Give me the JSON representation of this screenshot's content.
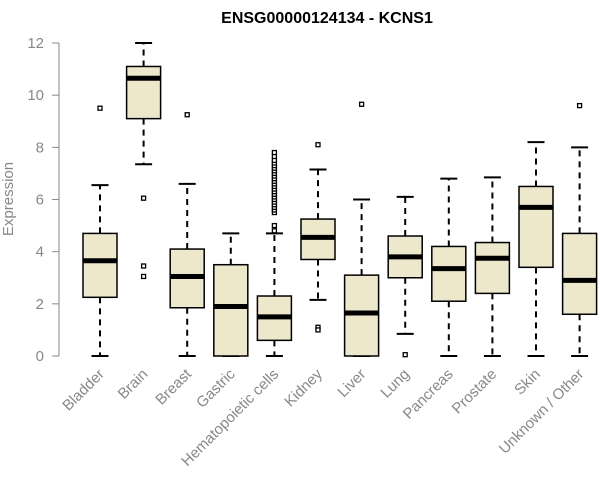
{
  "chart_data": {
    "type": "boxplot",
    "title": "ENSG00000124134 - KCNS1",
    "xlabel": "",
    "ylabel": "Expression",
    "ylim": [
      0,
      12
    ],
    "yticks": [
      0,
      2,
      4,
      6,
      8,
      10,
      12
    ],
    "colors": {
      "box_fill": "#ede7cc",
      "stroke": "#000000",
      "axis": "#888888"
    },
    "series": [
      {
        "category": "Bladder",
        "min": 0,
        "q1": 2.25,
        "median": 3.65,
        "q3": 4.7,
        "max": 6.55,
        "outliers": [
          9.5
        ]
      },
      {
        "category": "Brain",
        "min": 7.35,
        "q1": 9.1,
        "median": 10.65,
        "q3": 11.1,
        "max": 12.0,
        "outliers": [
          6.05,
          3.45,
          3.05
        ]
      },
      {
        "category": "Breast",
        "min": 0,
        "q1": 1.85,
        "median": 3.05,
        "q3": 4.1,
        "max": 6.6,
        "outliers": [
          9.25
        ]
      },
      {
        "category": "Gastric",
        "min": 0,
        "q1": 0,
        "median": 1.9,
        "q3": 3.5,
        "max": 4.7,
        "outliers": []
      },
      {
        "category": "Hematopoietic cells",
        "min": 0,
        "q1": 0.6,
        "median": 1.5,
        "q3": 2.3,
        "max": 4.7,
        "outliers": [
          4.8,
          5.0,
          5.5,
          5.6,
          5.7,
          5.8,
          5.9,
          6.0,
          6.1,
          6.2,
          6.3,
          6.4,
          6.5,
          6.6,
          6.7,
          6.8,
          6.9,
          7.0,
          7.1,
          7.2,
          7.3,
          7.4,
          7.5,
          7.65,
          7.8
        ]
      },
      {
        "category": "Kidney",
        "min": 2.15,
        "q1": 3.7,
        "median": 4.55,
        "q3": 5.25,
        "max": 7.15,
        "outliers": [
          8.1,
          1.1,
          1.0
        ]
      },
      {
        "category": "Liver",
        "min": 0,
        "q1": 0,
        "median": 1.65,
        "q3": 3.1,
        "max": 6.0,
        "outliers": [
          9.65
        ]
      },
      {
        "category": "Lung",
        "min": 0.85,
        "q1": 3.0,
        "median": 3.8,
        "q3": 4.6,
        "max": 6.1,
        "outliers": [
          0.05
        ]
      },
      {
        "category": "Pancreas",
        "min": 0,
        "q1": 2.1,
        "median": 3.35,
        "q3": 4.2,
        "max": 6.8,
        "outliers": []
      },
      {
        "category": "Prostate",
        "min": 0,
        "q1": 2.4,
        "median": 3.75,
        "q3": 4.35,
        "max": 6.85,
        "outliers": []
      },
      {
        "category": "Skin",
        "min": 0,
        "q1": 3.4,
        "median": 5.7,
        "q3": 6.5,
        "max": 8.2,
        "outliers": []
      },
      {
        "category": "Unknown / Other",
        "min": 0,
        "q1": 1.6,
        "median": 2.9,
        "q3": 4.7,
        "max": 8.0,
        "outliers": [
          9.6
        ]
      }
    ]
  }
}
